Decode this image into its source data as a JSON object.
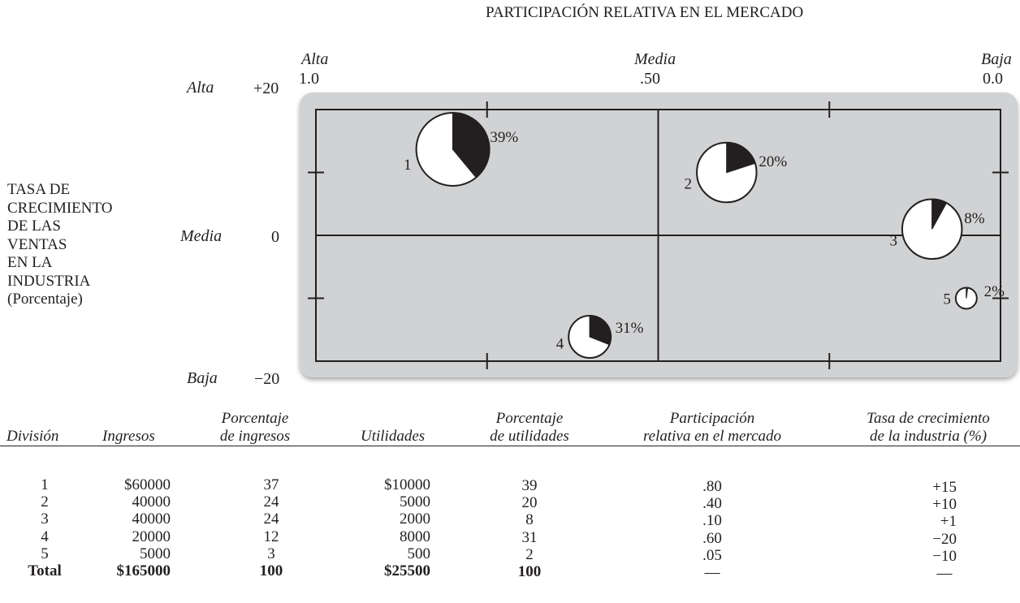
{
  "x_axis": {
    "title": "PARTICIPACIÓN RELATIVA EN EL MERCADO",
    "level_labels": [
      "Alta",
      "Media",
      "Baja"
    ],
    "tick_labels": [
      "1.0",
      ".50",
      "0.0"
    ]
  },
  "y_axis": {
    "title_lines": [
      "TASA DE",
      "CRECIMIENTO",
      "DE LAS",
      "VENTAS",
      "EN LA",
      "INDUSTRIA",
      "(Porcentaje)"
    ],
    "level_labels": [
      "Alta",
      "Media",
      "Baja"
    ],
    "tick_labels": [
      "+20",
      "0",
      "−20"
    ]
  },
  "colors": {
    "panel": "#d1d2d4",
    "ink": "#231f20",
    "wedge": "#231f20",
    "circle_fill": "#ffffff"
  },
  "chart_data": {
    "type": "bubble",
    "x_axis": {
      "label": "PARTICIPACIÓN RELATIVA EN EL MERCADO",
      "range": [
        1.0,
        0.0
      ],
      "reversed": true
    },
    "y_axis": {
      "label": "TASA DE CRECIMIENTO DE LAS VENTAS EN LA INDUSTRIA (Porcentaje)",
      "range": [
        -20,
        20
      ]
    },
    "bubble_size": "Ingresos",
    "wedge": "Porcentaje de utilidades",
    "points": [
      {
        "label": "1",
        "x": 0.8,
        "y": 15,
        "revenue": 60000,
        "profit_pct": 39,
        "pct_label": "39%"
      },
      {
        "label": "2",
        "x": 0.4,
        "y": 10,
        "revenue": 40000,
        "profit_pct": 20,
        "pct_label": "20%"
      },
      {
        "label": "3",
        "x": 0.1,
        "y": 1,
        "revenue": 40000,
        "profit_pct": 8,
        "pct_label": "8%"
      },
      {
        "label": "4",
        "x": 0.6,
        "y": -20,
        "revenue": 20000,
        "profit_pct": 31,
        "pct_label": "31%"
      },
      {
        "label": "5",
        "x": 0.05,
        "y": -10,
        "revenue": 5000,
        "profit_pct": 2,
        "pct_label": "2%"
      }
    ]
  },
  "table": {
    "headers": {
      "division": "División",
      "ingresos": "Ingresos",
      "pct_ingresos": [
        "Porcentaje",
        "de ingresos"
      ],
      "utilidades": "Utilidades",
      "pct_utilidades": [
        "Porcentaje",
        "de utilidades"
      ],
      "participacion": [
        "Participación",
        "relativa en el mercado"
      ],
      "tasa": [
        "Tasa de crecimiento",
        "de la industria (%)"
      ]
    },
    "columns": {
      "division": [
        "1",
        "2",
        "3",
        "4",
        "5",
        "Total"
      ],
      "ingresos": [
        "$60000",
        "40000",
        "40000",
        "20000",
        "5000",
        "$165000"
      ],
      "pct_ingresos": [
        "37",
        "24",
        "24",
        "12",
        "3",
        "100"
      ],
      "utilidades": [
        "$10000",
        "5000",
        "2000",
        "8000",
        "500",
        "$25500"
      ],
      "pct_utilidades": [
        "39",
        "20",
        "8",
        "31",
        "2",
        "100"
      ],
      "participacion": [
        ".80",
        ".40",
        ".10",
        ".60",
        ".05",
        "—"
      ],
      "tasa": [
        "+15",
        "+10",
        "+1",
        "−20",
        "−10",
        "—"
      ]
    }
  }
}
